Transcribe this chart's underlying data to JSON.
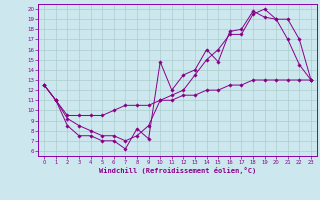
{
  "xlabel": "Windchill (Refroidissement éolien,°C)",
  "bg_color": "#cce8ee",
  "line_color": "#880088",
  "grid_color": "#aacccc",
  "spine_color": "#8800aa",
  "xlim": [
    -0.5,
    23.5
  ],
  "ylim": [
    5.5,
    20.5
  ],
  "xticks": [
    0,
    1,
    2,
    3,
    4,
    5,
    6,
    7,
    8,
    9,
    10,
    11,
    12,
    13,
    14,
    15,
    16,
    17,
    18,
    19,
    20,
    21,
    22,
    23
  ],
  "yticks": [
    6,
    7,
    8,
    9,
    10,
    11,
    12,
    13,
    14,
    15,
    16,
    17,
    18,
    19,
    20
  ],
  "line1_x": [
    0,
    1,
    2,
    3,
    4,
    5,
    6,
    7,
    8,
    9,
    10,
    11,
    12,
    13,
    14,
    15,
    16,
    17,
    18,
    19,
    20,
    21,
    22,
    23
  ],
  "line1_y": [
    12.5,
    11.0,
    8.5,
    7.5,
    7.5,
    7.0,
    7.0,
    6.2,
    8.2,
    7.2,
    14.8,
    12.0,
    13.5,
    14.0,
    16.0,
    14.8,
    17.8,
    18.0,
    19.8,
    19.2,
    19.0,
    17.0,
    14.5,
    13.0
  ],
  "line2_x": [
    0,
    1,
    2,
    3,
    4,
    5,
    6,
    7,
    8,
    9,
    10,
    11,
    12,
    13,
    14,
    15,
    16,
    17,
    18,
    19,
    20,
    21,
    22,
    23
  ],
  "line2_y": [
    12.5,
    11.0,
    9.2,
    8.5,
    8.0,
    7.5,
    7.5,
    7.0,
    7.5,
    8.5,
    11.0,
    11.5,
    12.0,
    13.5,
    15.0,
    16.0,
    17.5,
    17.5,
    19.5,
    20.0,
    19.0,
    19.0,
    17.0,
    13.0
  ],
  "line3_x": [
    0,
    1,
    2,
    3,
    4,
    5,
    6,
    7,
    8,
    9,
    10,
    11,
    12,
    13,
    14,
    15,
    16,
    17,
    18,
    19,
    20,
    21,
    22,
    23
  ],
  "line3_y": [
    12.5,
    11.0,
    9.5,
    9.5,
    9.5,
    9.5,
    10.0,
    10.5,
    10.5,
    10.5,
    11.0,
    11.0,
    11.5,
    11.5,
    12.0,
    12.0,
    12.5,
    12.5,
    13.0,
    13.0,
    13.0,
    13.0,
    13.0,
    13.0
  ]
}
